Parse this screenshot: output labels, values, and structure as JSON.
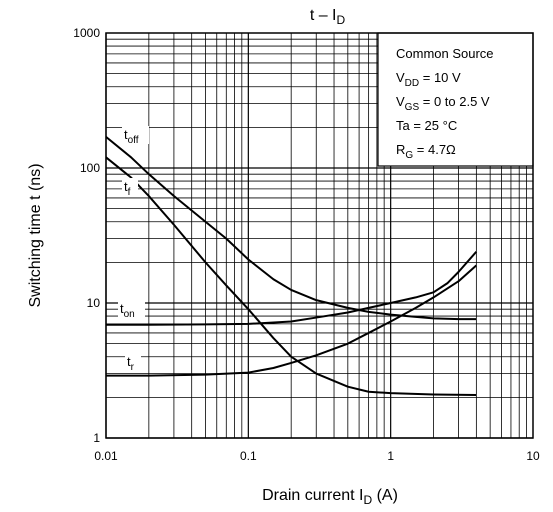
{
  "chart_data": {
    "type": "line",
    "title": {
      "main": "t – I",
      "sub": "D"
    },
    "xlabel": {
      "main": "Drain current   I",
      "sub": "D",
      "suffix": "   (A)"
    },
    "ylabel": "Switching time   t    (ns)",
    "x_scale": "log",
    "y_scale": "log",
    "xlim": [
      0.01,
      10
    ],
    "ylim": [
      1,
      1000
    ],
    "x_ticks": [
      "0.01",
      "0.1",
      "1",
      "10"
    ],
    "y_ticks": [
      "1",
      "10",
      "100",
      "1000"
    ],
    "grid": true,
    "legend": "inline",
    "conditions": [
      {
        "main": "Common Source",
        "sub": "",
        "tail": ""
      },
      {
        "main": "V",
        "sub": "DD",
        "tail": " = 10 V"
      },
      {
        "main": "V",
        "sub": "GS",
        "tail": " = 0 to 2.5 V"
      },
      {
        "main": "Ta = 25 °C",
        "sub": "",
        "tail": ""
      },
      {
        "main": "R",
        "sub": "G",
        "tail": " = 4.7Ω"
      }
    ],
    "series": [
      {
        "name": "t_off",
        "label_main": "t",
        "label_sub": "off",
        "x": [
          0.01,
          0.015,
          0.02,
          0.03,
          0.05,
          0.07,
          0.1,
          0.15,
          0.2,
          0.3,
          0.5,
          0.7,
          1,
          1.5,
          2,
          3,
          4
        ],
        "y": [
          170,
          120,
          90,
          62,
          40,
          30,
          21,
          15,
          12.5,
          10.5,
          9.2,
          8.6,
          8.2,
          7.9,
          7.7,
          7.6,
          7.6
        ]
      },
      {
        "name": "t_f",
        "label_main": "t",
        "label_sub": "f",
        "x": [
          0.01,
          0.015,
          0.02,
          0.03,
          0.05,
          0.07,
          0.1,
          0.15,
          0.2,
          0.3,
          0.5,
          0.7,
          1,
          2,
          4
        ],
        "y": [
          120,
          85,
          62,
          38,
          20,
          13.5,
          9,
          5.5,
          4,
          3,
          2.4,
          2.2,
          2.15,
          2.1,
          2.08
        ]
      },
      {
        "name": "t_on",
        "label_main": "t",
        "label_sub": "on",
        "x": [
          0.01,
          0.02,
          0.05,
          0.1,
          0.2,
          0.3,
          0.5,
          0.7,
          1,
          1.5,
          2,
          2.5,
          3,
          4
        ],
        "y": [
          6.9,
          6.9,
          6.95,
          7,
          7.3,
          7.8,
          8.5,
          9.2,
          10,
          11,
          12,
          14,
          17,
          24
        ]
      },
      {
        "name": "t_r",
        "label_main": "t",
        "label_sub": "r",
        "x": [
          0.01,
          0.02,
          0.05,
          0.1,
          0.15,
          0.2,
          0.3,
          0.5,
          0.7,
          1,
          1.5,
          2,
          3,
          4
        ],
        "y": [
          2.9,
          2.9,
          2.95,
          3.05,
          3.3,
          3.6,
          4.1,
          5,
          6,
          7.3,
          9.2,
          11,
          14.5,
          19
        ]
      }
    ]
  }
}
